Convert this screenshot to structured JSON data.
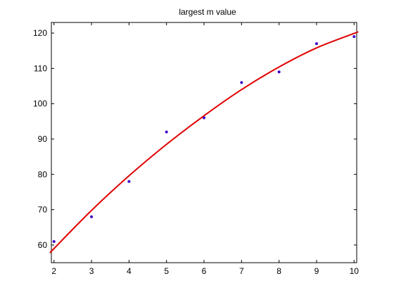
{
  "chart_data": {
    "type": "scatter",
    "title": "largest m value",
    "xlabel": "",
    "ylabel": "",
    "xlim": [
      1.93,
      10.07
    ],
    "ylim": [
      55,
      123
    ],
    "x_ticks": [
      2,
      3,
      4,
      5,
      6,
      7,
      8,
      9,
      10
    ],
    "y_ticks": [
      60,
      70,
      80,
      90,
      100,
      110,
      120
    ],
    "grid": false,
    "legend": "none",
    "series": [
      {
        "kind": "points",
        "color": "#3c00c8",
        "x": [
          2,
          3,
          4,
          5,
          6,
          7,
          8,
          9,
          10
        ],
        "y": [
          61,
          68,
          78,
          92,
          96,
          106,
          109,
          117,
          119
        ]
      },
      {
        "kind": "fit-line",
        "color": "#e00000",
        "x": [
          1.93,
          2,
          3,
          4,
          5,
          6,
          7,
          8,
          9,
          10,
          10.07
        ],
        "y": [
          58.2,
          59,
          69.8,
          79.6,
          88.5,
          96.6,
          104,
          110.4,
          115.8,
          119.9,
          120.2
        ]
      }
    ]
  }
}
